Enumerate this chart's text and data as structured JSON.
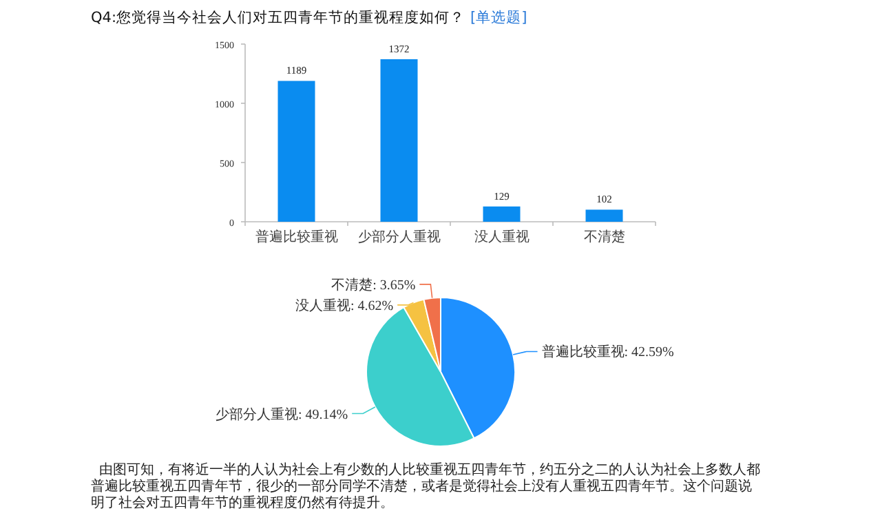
{
  "chart_data": [
    {
      "type": "bar",
      "title": "Q4:您觉得当今社会人们对五四青年节的重视程度如何？",
      "subtitle": "[单选题]",
      "categories": [
        "普遍比较重视",
        "少部分人重视",
        "没人重视",
        "不清楚"
      ],
      "values": [
        1189,
        1372,
        129,
        102
      ],
      "color": "#0a8cf0",
      "ylim": [
        0,
        1500
      ],
      "yticks": [
        0,
        500,
        1000,
        1500
      ],
      "data_labels": true
    },
    {
      "type": "pie",
      "categories": [
        "普遍比较重视",
        "少部分人重视",
        "没人重视",
        "不清楚"
      ],
      "values": [
        42.59,
        49.14,
        4.62,
        3.65
      ],
      "colors": [
        "#1e90ff",
        "#3ccfcc",
        "#f5c242",
        "#f0704a"
      ],
      "value_labels": [
        ": 42.59%",
        ": 49.14%",
        ": 4.62%",
        ": 3.65%"
      ],
      "annotations": [
        "由图可知，有将近一半的人认为社会上有少数的人比较重视五四青年节，约五分之二的人认为社会上多数人都普遍比较重视五四青年节，很少的一部分同学不清楚，或者是觉得社会上没有人重视五四青年节。这个问题说明了社会对五四青年节的重视程度仍然有待提升。"
      ]
    }
  ]
}
